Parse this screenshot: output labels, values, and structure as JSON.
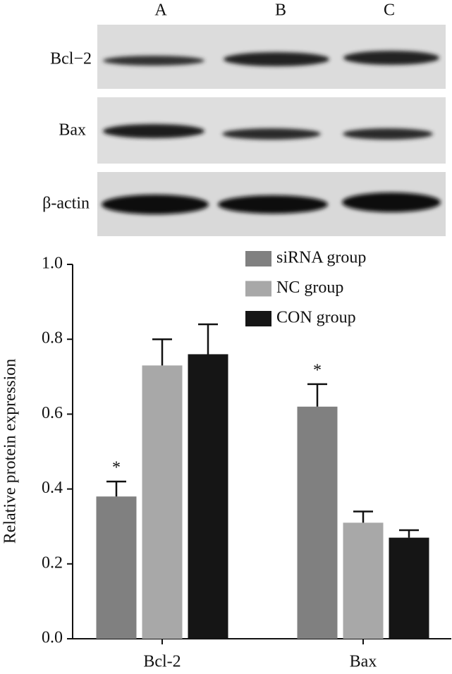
{
  "blot": {
    "lanes": [
      "A",
      "B",
      "C"
    ],
    "rows": [
      "Bcl−2",
      "Bax",
      "β-actin"
    ]
  },
  "chart_data": {
    "type": "bar",
    "y_label": "Relative protein expression",
    "categories": [
      "Bcl-2",
      "Bax"
    ],
    "series": [
      {
        "name": "siRNA group",
        "color": "#808080",
        "values": [
          0.38,
          0.62
        ],
        "errors": [
          0.04,
          0.06
        ],
        "markers": [
          "*",
          "*"
        ]
      },
      {
        "name": "NC group",
        "color": "#a8a8a8",
        "values": [
          0.73,
          0.31
        ],
        "errors": [
          0.07,
          0.03
        ]
      },
      {
        "name": "CON group",
        "color": "#151515",
        "values": [
          0.76,
          0.27
        ],
        "errors": [
          0.08,
          0.02
        ]
      }
    ],
    "ylim": [
      0,
      1
    ],
    "yticks": [
      {
        "value": 0,
        "label": "0.0"
      },
      {
        "value": 0.2,
        "label": "0.2"
      },
      {
        "value": 0.4,
        "label": "0.4"
      },
      {
        "value": 0.6,
        "label": "0.6"
      },
      {
        "value": 0.8,
        "label": "0.8"
      },
      {
        "value": 1,
        "label": "1.0"
      }
    ],
    "legend": "top-right"
  }
}
